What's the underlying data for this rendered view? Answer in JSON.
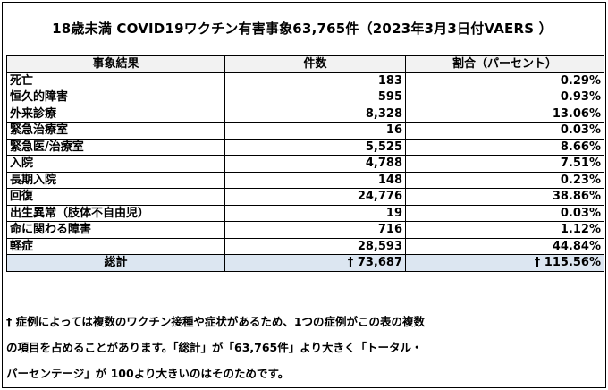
{
  "title": "18歳未満 COVID19ワクチン有害事象63,765件（2023年3月3日付VAERS ）",
  "table": {
    "headers": [
      "事象結果",
      "件数",
      "割合（パーセント）"
    ],
    "rows": [
      {
        "label": "死亡",
        "count": "183",
        "percent": "0.29%"
      },
      {
        "label": "恒久的障害",
        "count": "595",
        "percent": "0.93%"
      },
      {
        "label": "外来診療",
        "count": "8,328",
        "percent": "13.06%"
      },
      {
        "label": "緊急治療室",
        "count": "16",
        "percent": "0.03%"
      },
      {
        "label": "緊急医/治療室",
        "count": "5,525",
        "percent": "8.66%"
      },
      {
        "label": "入院",
        "count": "4,788",
        "percent": "7.51%"
      },
      {
        "label": "長期入院",
        "count": "148",
        "percent": "0.23%"
      },
      {
        "label": "回復",
        "count": "24,776",
        "percent": "38.86%"
      },
      {
        "label": "出生異常（肢体不自由児）",
        "count": "19",
        "percent": "0.03%"
      },
      {
        "label": "命に関わる障害",
        "count": "716",
        "percent": "1.12%"
      },
      {
        "label": "軽症",
        "count": "28,593",
        "percent": "44.84%"
      }
    ],
    "total": {
      "label": "総計",
      "count": "† 73,687",
      "percent": "† 115.56%"
    }
  },
  "footnote": {
    "line1": "† 症例によっては複数のワクチン接種や症状があるため、1つの症例がこの表の複数",
    "line2": "の項目を占めることがあります。「総計」が「63,765件」より大きく「トータル・",
    "line3": "パーセンテージ」が 100より大きいのはそのためです。"
  }
}
